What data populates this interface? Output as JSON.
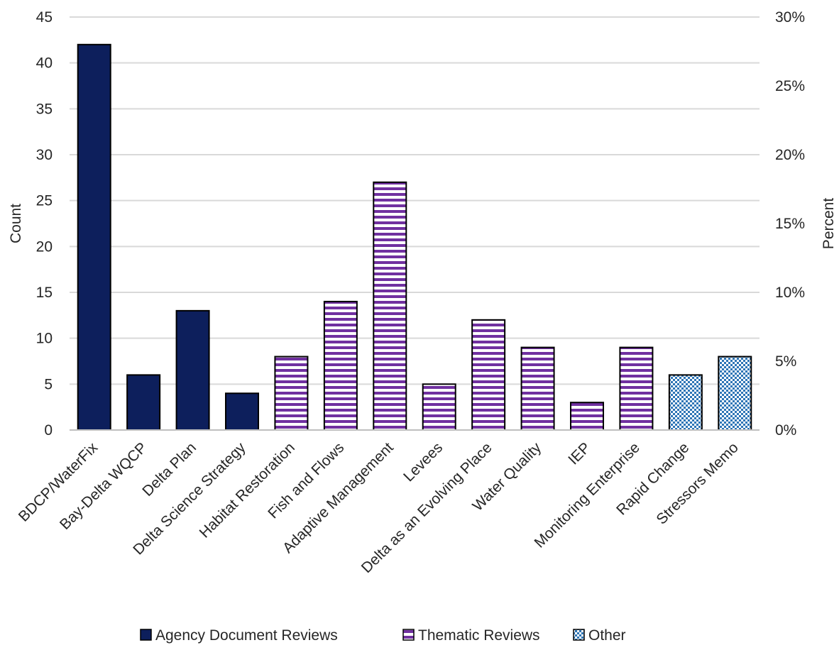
{
  "chart_data": {
    "type": "bar",
    "categories": [
      "BDCP/WaterFix",
      "Bay-Delta WQCP",
      "Delta Plan",
      "Delta Science Strategy",
      "Habitat Restoration",
      "Fish and Flows",
      "Adaptive Management",
      "Levees",
      "Delta as an Evolving Place",
      "Water Quality",
      "IEP",
      "Monitoring Enterprise",
      "Rapid Change",
      "Stressors Memo"
    ],
    "values": [
      42,
      6,
      13,
      4,
      8,
      14,
      27,
      5,
      12,
      9,
      3,
      9,
      6,
      8
    ],
    "groups": [
      "Agency Document Reviews",
      "Agency Document Reviews",
      "Agency Document Reviews",
      "Agency Document Reviews",
      "Thematic Reviews",
      "Thematic Reviews",
      "Thematic Reviews",
      "Thematic Reviews",
      "Thematic Reviews",
      "Thematic Reviews",
      "Thematic Reviews",
      "Thematic Reviews",
      "Other",
      "Other"
    ],
    "legend": [
      {
        "name": "Agency Document Reviews",
        "style": "solid",
        "color": "#0d1f5c"
      },
      {
        "name": "Thematic Reviews",
        "style": "horizontal-stripes",
        "color": "#7030a0"
      },
      {
        "name": "Other",
        "style": "checker",
        "color": "#2e75b6"
      }
    ],
    "legend_position": "bottom",
    "ylabel": "Count",
    "y2label": "Percent",
    "ylim": [
      0,
      45
    ],
    "yticks": [
      "0",
      "5",
      "10",
      "15",
      "20",
      "25",
      "30",
      "35",
      "40",
      "45"
    ],
    "y2lim": [
      0,
      30
    ],
    "y2ticks": [
      "0%",
      "5%",
      "10%",
      "15%",
      "20%",
      "25%",
      "30%"
    ],
    "grid": true
  }
}
